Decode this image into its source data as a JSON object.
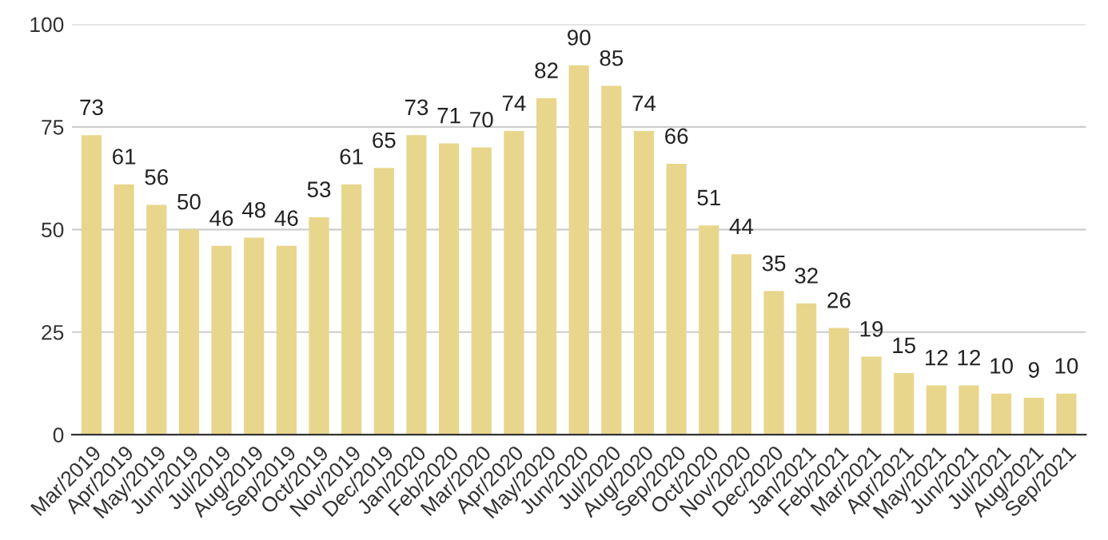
{
  "chart_data": {
    "type": "bar",
    "categories": [
      "Mar/2019",
      "Apr/2019",
      "May/2019",
      "Jun/2019",
      "Jul/2019",
      "Aug/2019",
      "Sep/2019",
      "Oct/2019",
      "Nov/2019",
      "Dec/2019",
      "Jan/2020",
      "Feb/2020",
      "Mar/2020",
      "Apr/2020",
      "May/2020",
      "Jun/2020",
      "Jul/2020",
      "Aug/2020",
      "Sep/2020",
      "Oct/2020",
      "Nov/2020",
      "Dec/2020",
      "Jan/2021",
      "Feb/2021",
      "Mar/2021",
      "Apr/2021",
      "May/2021",
      "Jun/2021",
      "Jul/2021",
      "Aug/2021",
      "Sep/2021"
    ],
    "values": [
      73,
      61,
      56,
      50,
      46,
      48,
      46,
      53,
      61,
      65,
      73,
      71,
      70,
      74,
      82,
      90,
      85,
      74,
      66,
      51,
      44,
      35,
      32,
      26,
      19,
      15,
      12,
      12,
      10,
      9,
      10
    ],
    "color": "#e8d68c",
    "ylim": [
      0,
      100
    ],
    "yticks": [
      0,
      25,
      50,
      75,
      100
    ],
    "grid": "y",
    "data_labels": true
  }
}
